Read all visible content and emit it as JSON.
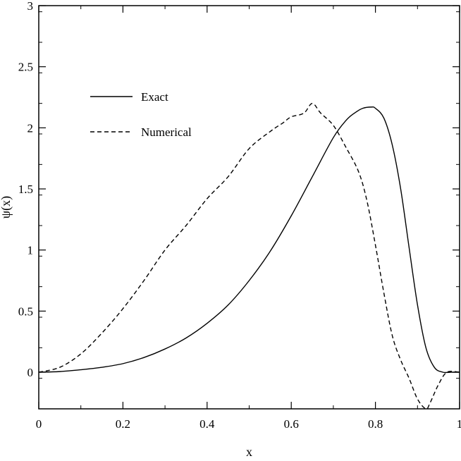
{
  "chart_data": {
    "type": "line",
    "title": "",
    "xlabel": "x",
    "ylabel": "ψ(x)",
    "xlim": [
      0,
      1
    ],
    "ylim": [
      -0.3,
      3
    ],
    "xticks": [
      0,
      0.2,
      0.4,
      0.6,
      0.8,
      1
    ],
    "xtick_labels": [
      "0",
      "0.2",
      "0.4",
      "0.6",
      "0.8",
      "1"
    ],
    "yticks": [
      0,
      0.5,
      1,
      1.5,
      2,
      2.5,
      3
    ],
    "ytick_labels": [
      "0",
      "0.5",
      "1",
      "1.5",
      "2",
      "2.5",
      "3"
    ],
    "grid": false,
    "legend_position": "upper-left",
    "series": [
      {
        "name": "Exact",
        "style": "solid",
        "color": "#000000",
        "x": [
          0,
          0.05,
          0.1,
          0.15,
          0.2,
          0.25,
          0.3,
          0.35,
          0.4,
          0.45,
          0.5,
          0.55,
          0.6,
          0.65,
          0.7,
          0.73,
          0.75,
          0.77,
          0.79,
          0.8,
          0.82,
          0.84,
          0.86,
          0.88,
          0.9,
          0.92,
          0.94,
          0.96,
          0.98,
          1
        ],
        "y": [
          0,
          0.005,
          0.02,
          0.04,
          0.07,
          0.12,
          0.19,
          0.28,
          0.4,
          0.55,
          0.75,
          0.99,
          1.28,
          1.6,
          1.92,
          2.06,
          2.12,
          2.16,
          2.17,
          2.16,
          2.08,
          1.86,
          1.5,
          1.02,
          0.55,
          0.2,
          0.04,
          0.0,
          0.0,
          0.0
        ]
      },
      {
        "name": "Numerical",
        "style": "dashed",
        "color": "#000000",
        "x": [
          0,
          0.05,
          0.1,
          0.15,
          0.2,
          0.25,
          0.3,
          0.35,
          0.4,
          0.45,
          0.5,
          0.55,
          0.58,
          0.6,
          0.63,
          0.65,
          0.67,
          0.7,
          0.73,
          0.76,
          0.78,
          0.8,
          0.82,
          0.84,
          0.86,
          0.88,
          0.9,
          0.92,
          0.93,
          0.95,
          0.97,
          1
        ],
        "y": [
          0,
          0.04,
          0.15,
          0.32,
          0.52,
          0.75,
          1.0,
          1.2,
          1.42,
          1.6,
          1.83,
          1.97,
          2.04,
          2.09,
          2.12,
          2.2,
          2.12,
          2.02,
          1.84,
          1.64,
          1.4,
          1.04,
          0.65,
          0.3,
          0.1,
          -0.05,
          -0.22,
          -0.3,
          -0.25,
          -0.1,
          0.0,
          0.0
        ]
      }
    ]
  }
}
